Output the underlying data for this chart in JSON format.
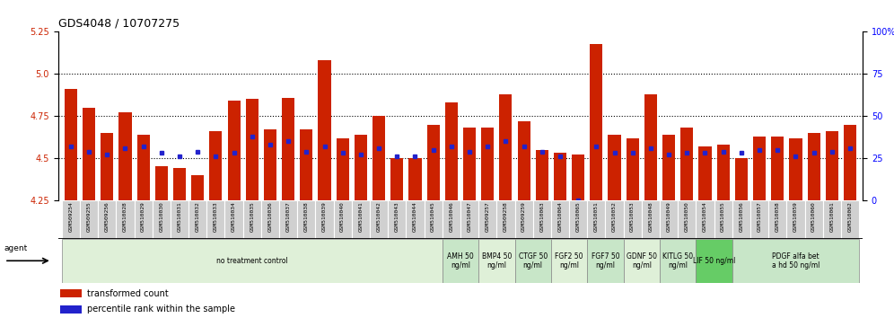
{
  "title": "GDS4048 / 10707275",
  "ylim_left": [
    4.25,
    5.25
  ],
  "ylim_right": [
    0,
    100
  ],
  "yticks_left": [
    4.25,
    4.5,
    4.75,
    5.0,
    5.25
  ],
  "yticks_right": [
    0,
    25,
    50,
    75,
    100
  ],
  "hlines": [
    4.5,
    4.75,
    5.0
  ],
  "bar_color": "#cc2200",
  "dot_color": "#2222cc",
  "samples": [
    "GSM509254",
    "GSM509255",
    "GSM509256",
    "GSM510028",
    "GSM510029",
    "GSM510030",
    "GSM510031",
    "GSM510032",
    "GSM510033",
    "GSM510034",
    "GSM510035",
    "GSM510036",
    "GSM510037",
    "GSM510038",
    "GSM510039",
    "GSM510040",
    "GSM510041",
    "GSM510042",
    "GSM510043",
    "GSM510044",
    "GSM510045",
    "GSM510046",
    "GSM510047",
    "GSM509257",
    "GSM509258",
    "GSM509259",
    "GSM510063",
    "GSM510064",
    "GSM510065",
    "GSM510051",
    "GSM510052",
    "GSM510053",
    "GSM510048",
    "GSM510049",
    "GSM510050",
    "GSM510054",
    "GSM510055",
    "GSM510056",
    "GSM510057",
    "GSM510058",
    "GSM510059",
    "GSM510060",
    "GSM510061",
    "GSM510062"
  ],
  "bar_heights": [
    4.91,
    4.8,
    4.65,
    4.77,
    4.64,
    4.45,
    4.44,
    4.4,
    4.66,
    4.84,
    4.85,
    4.67,
    4.86,
    4.67,
    5.08,
    4.62,
    4.64,
    4.75,
    4.5,
    4.5,
    4.7,
    4.83,
    4.68,
    4.68,
    4.88,
    4.72,
    4.55,
    4.53,
    4.52,
    5.18,
    4.64,
    4.62,
    4.88,
    4.64,
    4.68,
    4.57,
    4.58,
    4.5,
    4.63,
    4.63,
    4.62,
    4.65,
    4.66,
    4.7
  ],
  "dot_heights_pct": [
    32,
    29,
    27,
    31,
    32,
    28,
    26,
    29,
    26,
    28,
    38,
    33,
    35,
    29,
    32,
    28,
    27,
    31,
    26,
    26,
    30,
    32,
    29,
    32,
    35,
    32,
    29,
    26,
    0,
    32,
    28,
    28,
    31,
    27,
    28,
    28,
    29,
    28,
    30,
    30,
    26,
    28,
    29,
    31
  ],
  "groups": [
    {
      "label": "no treatment control",
      "start": 0,
      "end": 21,
      "color": "#dff0d8"
    },
    {
      "label": "AMH 50\nng/ml",
      "start": 21,
      "end": 23,
      "color": "#c8e6c8"
    },
    {
      "label": "BMP4 50\nng/ml",
      "start": 23,
      "end": 25,
      "color": "#dff0d8"
    },
    {
      "label": "CTGF 50\nng/ml",
      "start": 25,
      "end": 27,
      "color": "#c8e6c8"
    },
    {
      "label": "FGF2 50\nng/ml",
      "start": 27,
      "end": 29,
      "color": "#dff0d8"
    },
    {
      "label": "FGF7 50\nng/ml",
      "start": 29,
      "end": 31,
      "color": "#c8e6c8"
    },
    {
      "label": "GDNF 50\nng/ml",
      "start": 31,
      "end": 33,
      "color": "#dff0d8"
    },
    {
      "label": "KITLG 50\nng/ml",
      "start": 33,
      "end": 35,
      "color": "#c8e6c8"
    },
    {
      "label": "LIF 50 ng/ml",
      "start": 35,
      "end": 37,
      "color": "#66cc66"
    },
    {
      "label": "PDGF alfa bet\na hd 50 ng/ml",
      "start": 37,
      "end": 44,
      "color": "#c8e6c8"
    }
  ],
  "background_plot": "#ffffff",
  "background_fig": "#ffffff"
}
